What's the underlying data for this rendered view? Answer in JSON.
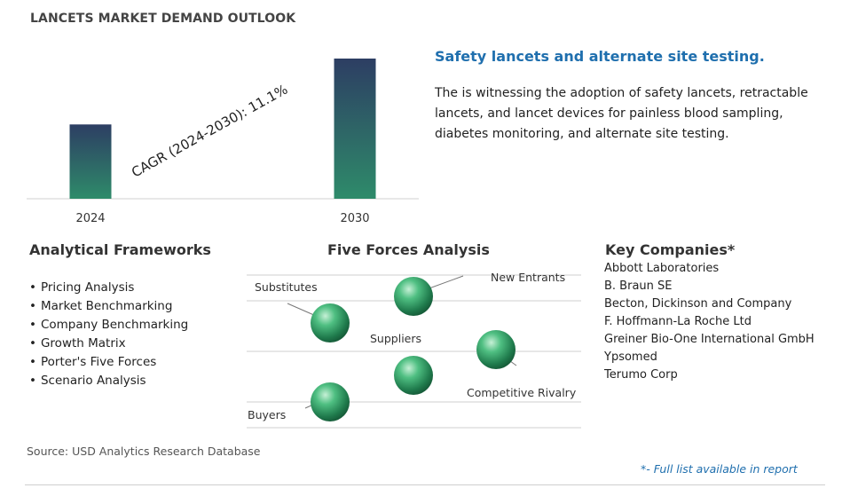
{
  "title": "LANCETS MARKET DEMAND OUTLOOK",
  "chart_data": {
    "type": "bar",
    "categories": [
      "2024",
      "2030"
    ],
    "values": [
      0.53,
      1.0
    ],
    "annotation": "CAGR (2024-2030):   11.1%",
    "colors": {
      "bar_top": "#2d3e63",
      "bar_bottom": "#2e8b6a"
    }
  },
  "headline": "Safety lancets and alternate site testing.",
  "description": "The is witnessing the adoption of safety lancets, retractable lancets, and lancet devices for painless blood sampling, diabetes monitoring, and alternate site testing.",
  "frameworks": {
    "title": "Analytical Frameworks",
    "items": [
      "Pricing Analysis",
      "Market Benchmarking",
      "Company Benchmarking",
      "Growth Matrix",
      "Porter's Five Forces",
      "Scenario Analysis"
    ]
  },
  "five_forces": {
    "title": "Five Forces Analysis",
    "labels": [
      "Substitutes",
      "New Entrants",
      "Suppliers",
      "Competitive Rivalry",
      "Buyers"
    ]
  },
  "companies": {
    "title": "Key Companies*",
    "items": [
      "Abbott Laboratories",
      "B. Braun SE",
      "Becton, Dickinson and Company",
      "F. Hoffmann-La Roche Ltd",
      "Greiner Bio-One International GmbH",
      "Ypsomed",
      "Terumo Corp"
    ]
  },
  "source": "Source: USD Analytics Research Database",
  "footnote": "*- Full list available in report"
}
